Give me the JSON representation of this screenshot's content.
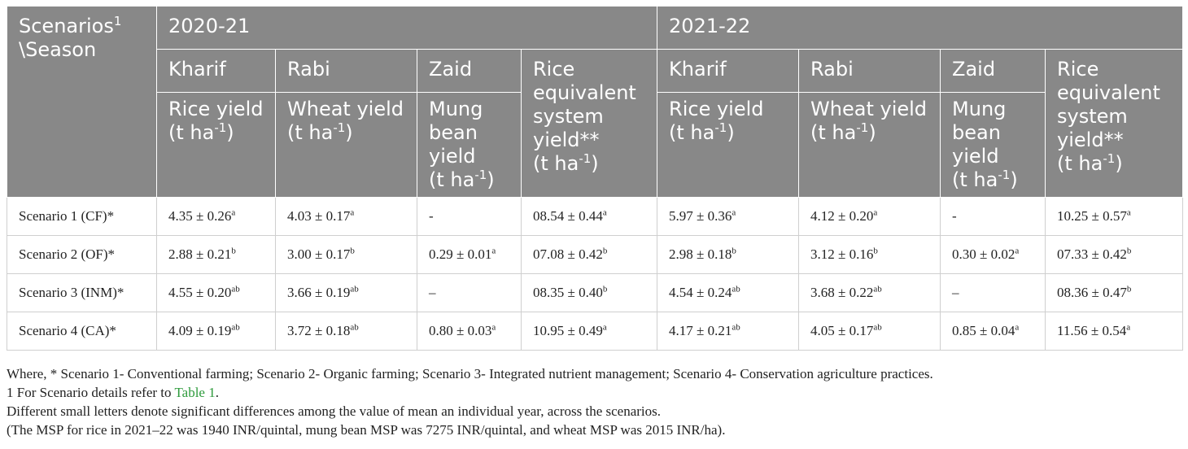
{
  "header": {
    "corner_main": "Scenarios",
    "corner_sup": "1",
    "corner_line2": "\\Season",
    "year1": "2020-21",
    "year2": "2021-22",
    "seasons": [
      "Kharif",
      "Rabi",
      "Zaid"
    ],
    "rice_yield": "Rice yield",
    "wheat_yield": "Wheat yield",
    "mung_yield": "Mung bean yield",
    "resy": "Rice equivalent system yield**",
    "unit_pre": "(t ha",
    "unit_sup": "-1",
    "unit_post": ")"
  },
  "rows": [
    {
      "label": "Scenario 1 (CF)*",
      "cells": [
        [
          "4.35 ± 0.26",
          "a"
        ],
        [
          "4.03 ± 0.17",
          "a"
        ],
        [
          "-",
          ""
        ],
        [
          "08.54 ± 0.44",
          "a"
        ],
        [
          "5.97 ± 0.36",
          "a"
        ],
        [
          "4.12 ± 0.20",
          "a"
        ],
        [
          "-",
          ""
        ],
        [
          "10.25 ± 0.57",
          "a"
        ]
      ]
    },
    {
      "label": "Scenario 2 (OF)*",
      "cells": [
        [
          "2.88 ± 0.21",
          "b"
        ],
        [
          "3.00 ± 0.17",
          "b"
        ],
        [
          "0.29 ± 0.01",
          "a"
        ],
        [
          "07.08 ± 0.42",
          "b"
        ],
        [
          "2.98 ± 0.18",
          "b"
        ],
        [
          "3.12 ± 0.16",
          "b"
        ],
        [
          "0.30 ± 0.02",
          "a"
        ],
        [
          "07.33 ± 0.42",
          "b"
        ]
      ]
    },
    {
      "label": "Scenario 3 (INM)*",
      "cells": [
        [
          "4.55 ± 0.20",
          "ab"
        ],
        [
          "3.66 ± 0.19",
          "ab"
        ],
        [
          "–",
          ""
        ],
        [
          "08.35 ± 0.40",
          "b"
        ],
        [
          "4.54 ± 0.24",
          "ab"
        ],
        [
          "3.68 ± 0.22",
          "ab"
        ],
        [
          "–",
          ""
        ],
        [
          "08.36 ± 0.47",
          "b"
        ]
      ]
    },
    {
      "label": "Scenario 4 (CA)*",
      "cells": [
        [
          "4.09 ± 0.19",
          "ab"
        ],
        [
          "3.72 ± 0.18",
          "ab"
        ],
        [
          "0.80 ± 0.03",
          "a"
        ],
        [
          "10.95 ± 0.49",
          "a"
        ],
        [
          "4.17 ± 0.21",
          "ab"
        ],
        [
          "4.05 ± 0.17",
          "ab"
        ],
        [
          "0.85 ± 0.04",
          "a"
        ],
        [
          "11.56 ± 0.54",
          "a"
        ]
      ]
    }
  ],
  "notes": {
    "line1": "Where, * Scenario 1- Conventional farming; Scenario 2- Organic farming; Scenario 3- Integrated nutrient management; Scenario 4- Conservation agriculture practices.",
    "line2_pre": "1 For Scenario details refer to ",
    "line2_link": "Table 1",
    "line2_post": ".",
    "line3": "Different small letters denote significant differences among the value of mean an individual year, across the scenarios.",
    "line4": "(The MSP for rice in 2021–22 was 1940 INR/quintal, mung bean MSP was 7275 INR/quintal, and wheat MSP was 2015 INR/ha)."
  }
}
